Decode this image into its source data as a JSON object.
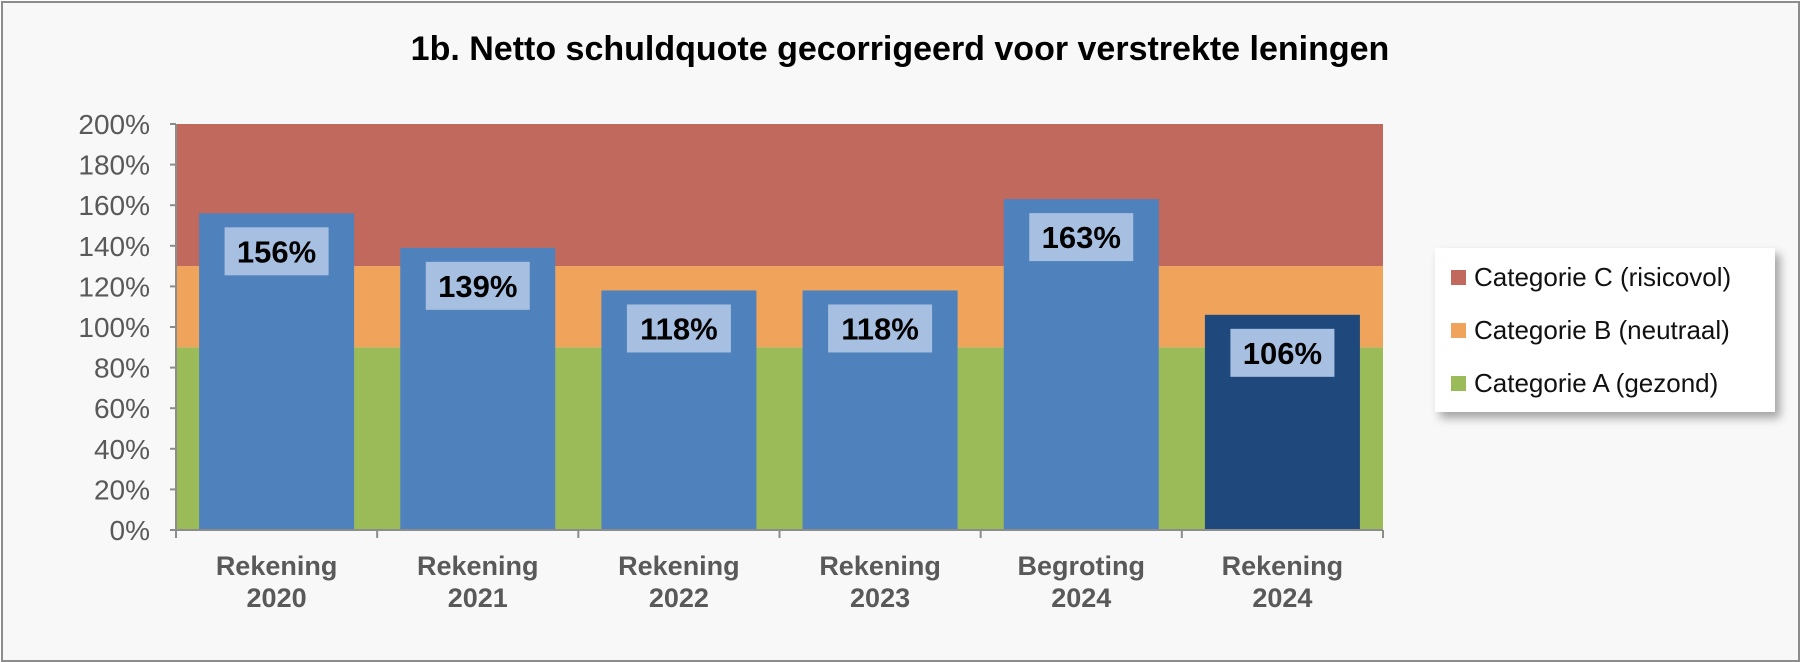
{
  "chart_data": {
    "type": "bar",
    "title": "1b. Netto schuldquote gecorrigeerd voor verstrekte leningen",
    "xlabel": "",
    "ylabel": "",
    "categories": [
      [
        "Rekening",
        "2020"
      ],
      [
        "Rekening",
        "2021"
      ],
      [
        "Rekening",
        "2022"
      ],
      [
        "Rekening",
        "2023"
      ],
      [
        "Begroting",
        "2024"
      ],
      [
        "Rekening",
        "2024"
      ]
    ],
    "values": [
      156,
      139,
      118,
      118,
      163,
      106
    ],
    "value_labels": [
      "156%",
      "139%",
      "118%",
      "118%",
      "163%",
      "106%"
    ],
    "bar_colors": [
      "#4f81bd",
      "#4f81bd",
      "#4f81bd",
      "#4f81bd",
      "#4f81bd",
      "#1f497d"
    ],
    "ylim": [
      0,
      200
    ],
    "y_ticks": [
      0,
      20,
      40,
      60,
      80,
      100,
      120,
      140,
      160,
      180,
      200
    ],
    "y_tick_labels": [
      "0%",
      "20%",
      "40%",
      "60%",
      "80%",
      "100%",
      "120%",
      "140%",
      "160%",
      "180%",
      "200%"
    ],
    "background_bands": [
      {
        "name": "Categorie A (gezond)",
        "from": 0,
        "to": 90,
        "color": "#9bbb59"
      },
      {
        "name": "Categorie B (neutraal)",
        "from": 90,
        "to": 130,
        "color": "#f0a35b"
      },
      {
        "name": "Categorie C (risicovol)",
        "from": 130,
        "to": 200,
        "color": "#c0695c"
      }
    ],
    "legend": {
      "placement": "right",
      "entries": [
        {
          "label": "Categorie C (risicovol)",
          "color": "#c0695c"
        },
        {
          "label": "Categorie B (neutraal)",
          "color": "#f0a35b"
        },
        {
          "label": "Categorie A (gezond)",
          "color": "#9bbb59"
        }
      ]
    },
    "grid": false
  }
}
